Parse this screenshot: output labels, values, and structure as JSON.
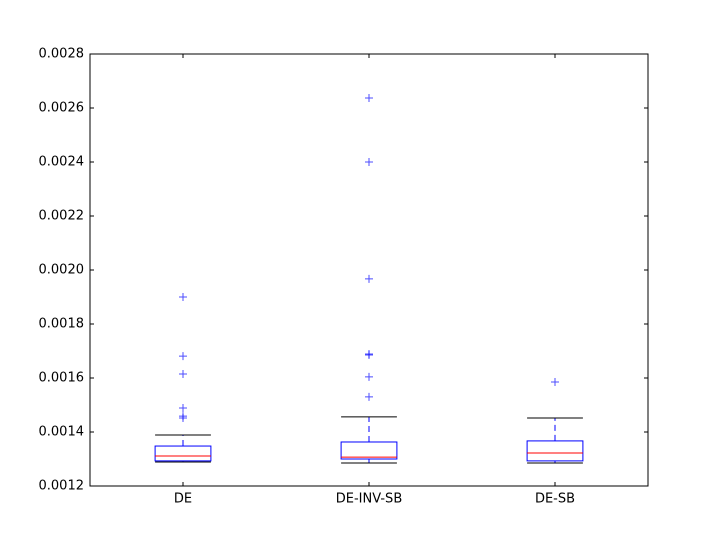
{
  "chart_data": {
    "type": "box",
    "categories": [
      "DE",
      "DE-INV-SB",
      "DE-SB"
    ],
    "stats": [
      {
        "low": 0.001289,
        "q1": 0.001293,
        "median": 0.001311,
        "q3": 0.001348,
        "high": 0.001389,
        "fliers": [
          0.0019,
          0.001681,
          0.001615,
          0.001489,
          0.001459,
          0.001452
        ]
      },
      {
        "low": 0.001285,
        "q1": 0.0013,
        "median": 0.001307,
        "q3": 0.001363,
        "high": 0.001456,
        "fliers": [
          0.002637,
          0.0024,
          0.001967,
          0.001689,
          0.001685,
          0.001604,
          0.00153
        ]
      },
      {
        "low": 0.001285,
        "q1": 0.001293,
        "median": 0.001322,
        "q3": 0.001367,
        "high": 0.001452,
        "fliers": [
          0.001585
        ]
      }
    ],
    "box_color": "#0000ff",
    "median_color": "#ff0000",
    "cap_color": "#000000",
    "flier_color": "#0000ff",
    "ylim": [
      0.0012,
      0.0028
    ],
    "yticks": [
      0.0012,
      0.0014,
      0.0016,
      0.0018,
      {
        "value": 0.002,
        "label": "0.0020"
      },
      0.0022,
      0.0024,
      0.0026,
      0.0028
    ],
    "grid": false
  }
}
